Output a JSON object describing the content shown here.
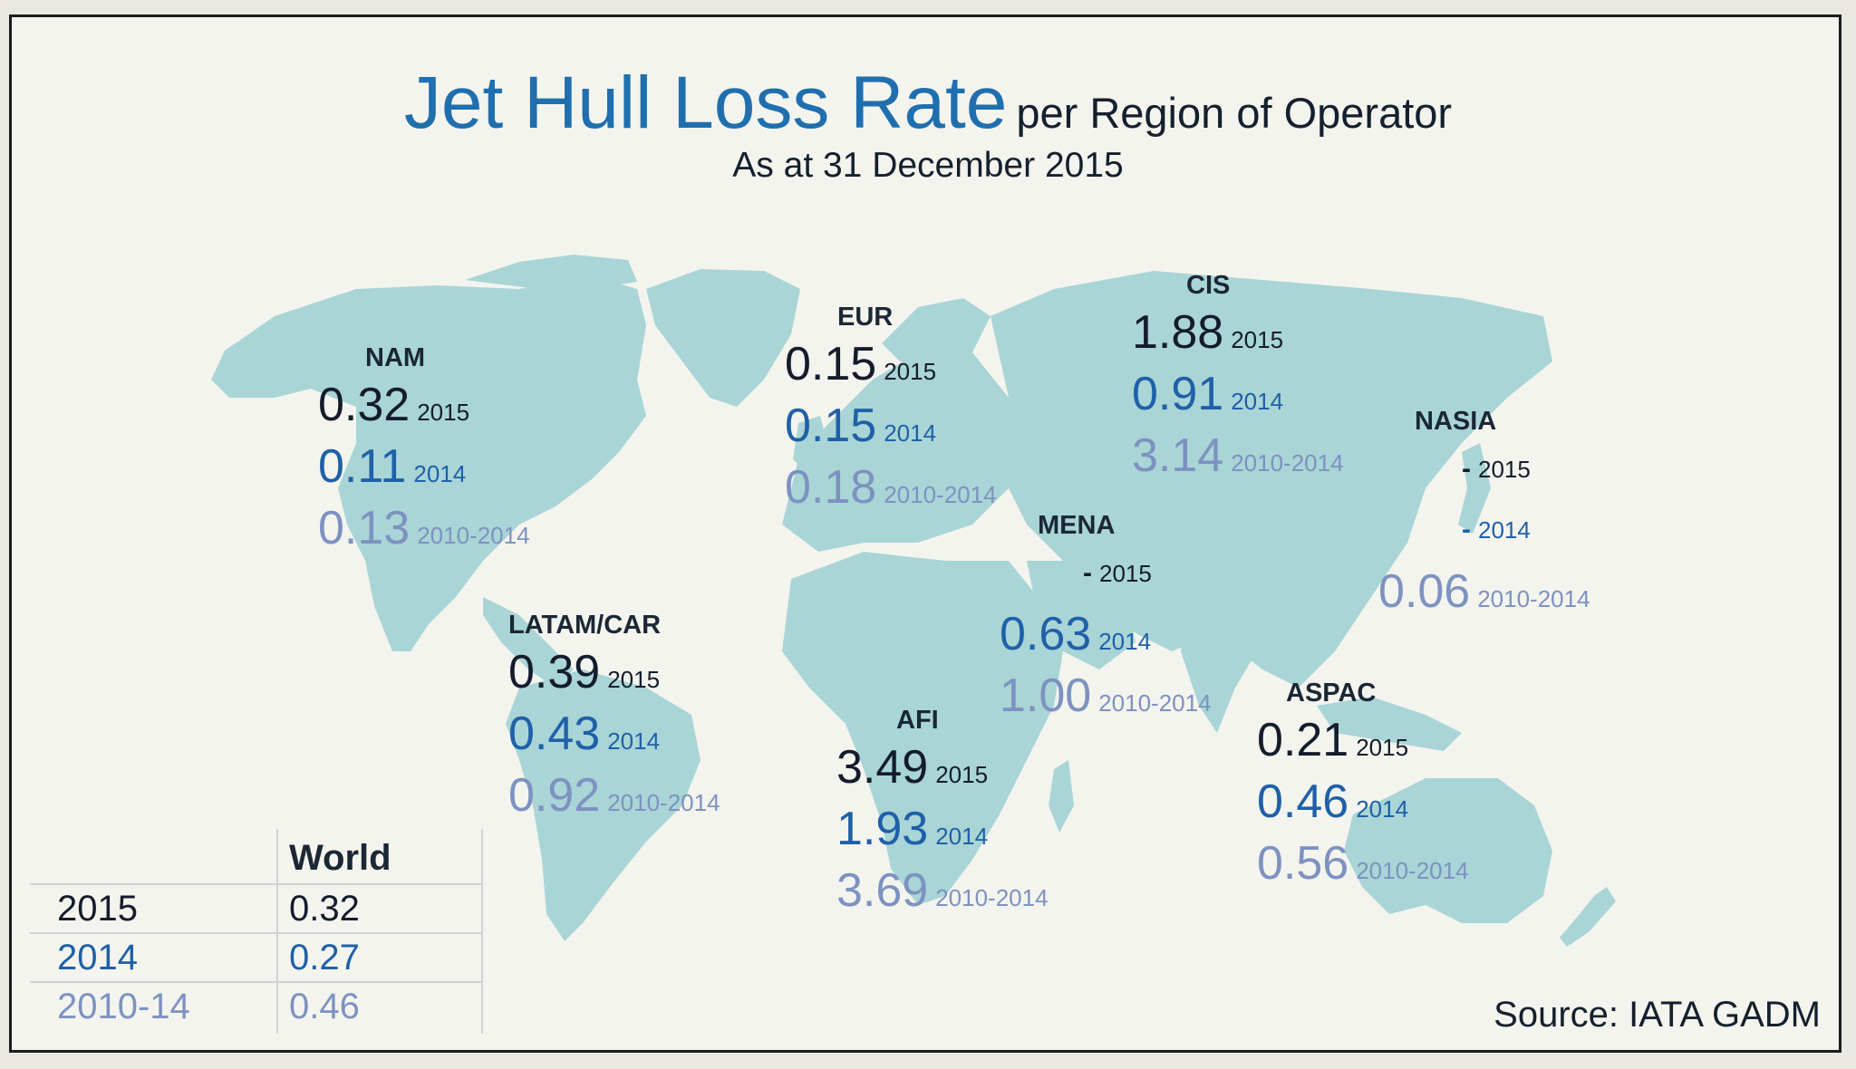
{
  "title": {
    "main": "Jet Hull Loss Rate",
    "suffix": "per Region of Operator",
    "subtitle": "As at 31 December 2015"
  },
  "colors": {
    "map_land": "#a9d5d6",
    "background": "#f4f4ee",
    "title": "#1f6fae",
    "year_2015": "#141c2c",
    "year_2014": "#1f60a8",
    "avg_2010_2014": "#7d92c0"
  },
  "regions": {
    "nam": {
      "name": "NAM",
      "v2015": "0.32",
      "l2015": "2015",
      "v2014": "0.11",
      "l2014": "2014",
      "vavg": "0.13",
      "lavg": "2010-2014"
    },
    "eur": {
      "name": "EUR",
      "v2015": "0.15",
      "l2015": "2015",
      "v2014": "0.15",
      "l2014": "2014",
      "vavg": "0.18",
      "lavg": "2010-2014"
    },
    "cis": {
      "name": "CIS",
      "v2015": "1.88",
      "l2015": "2015",
      "v2014": "0.91",
      "l2014": "2014",
      "vavg": "3.14",
      "lavg": "2010-2014"
    },
    "nasia": {
      "name": "NASIA",
      "v2015": "-",
      "l2015": "2015",
      "v2014": "-",
      "l2014": "2014",
      "vavg": "0.06",
      "lavg": "2010-2014"
    },
    "mena": {
      "name": "MENA",
      "v2015": "-",
      "l2015": "2015",
      "v2014": "0.63",
      "l2014": "2014",
      "vavg": "1.00",
      "lavg": "2010-2014"
    },
    "latam": {
      "name": "LATAM/CAR",
      "v2015": "0.39",
      "l2015": "2015",
      "v2014": "0.43",
      "l2014": "2014",
      "vavg": "0.92",
      "lavg": "2010-2014"
    },
    "afi": {
      "name": "AFI",
      "v2015": "3.49",
      "l2015": "2015",
      "v2014": "1.93",
      "l2014": "2014",
      "vavg": "3.69",
      "lavg": "2010-2014"
    },
    "aspac": {
      "name": "ASPAC",
      "v2015": "0.21",
      "l2015": "2015",
      "v2014": "0.46",
      "l2014": "2014",
      "vavg": "0.56",
      "lavg": "2010-2014"
    }
  },
  "world_table": {
    "header": "World",
    "rows": [
      {
        "period": "2015",
        "value": "0.32"
      },
      {
        "period": "2014",
        "value": "0.27"
      },
      {
        "period": "2010-14",
        "value": "0.46"
      }
    ]
  },
  "source": "Source: IATA GADM"
}
